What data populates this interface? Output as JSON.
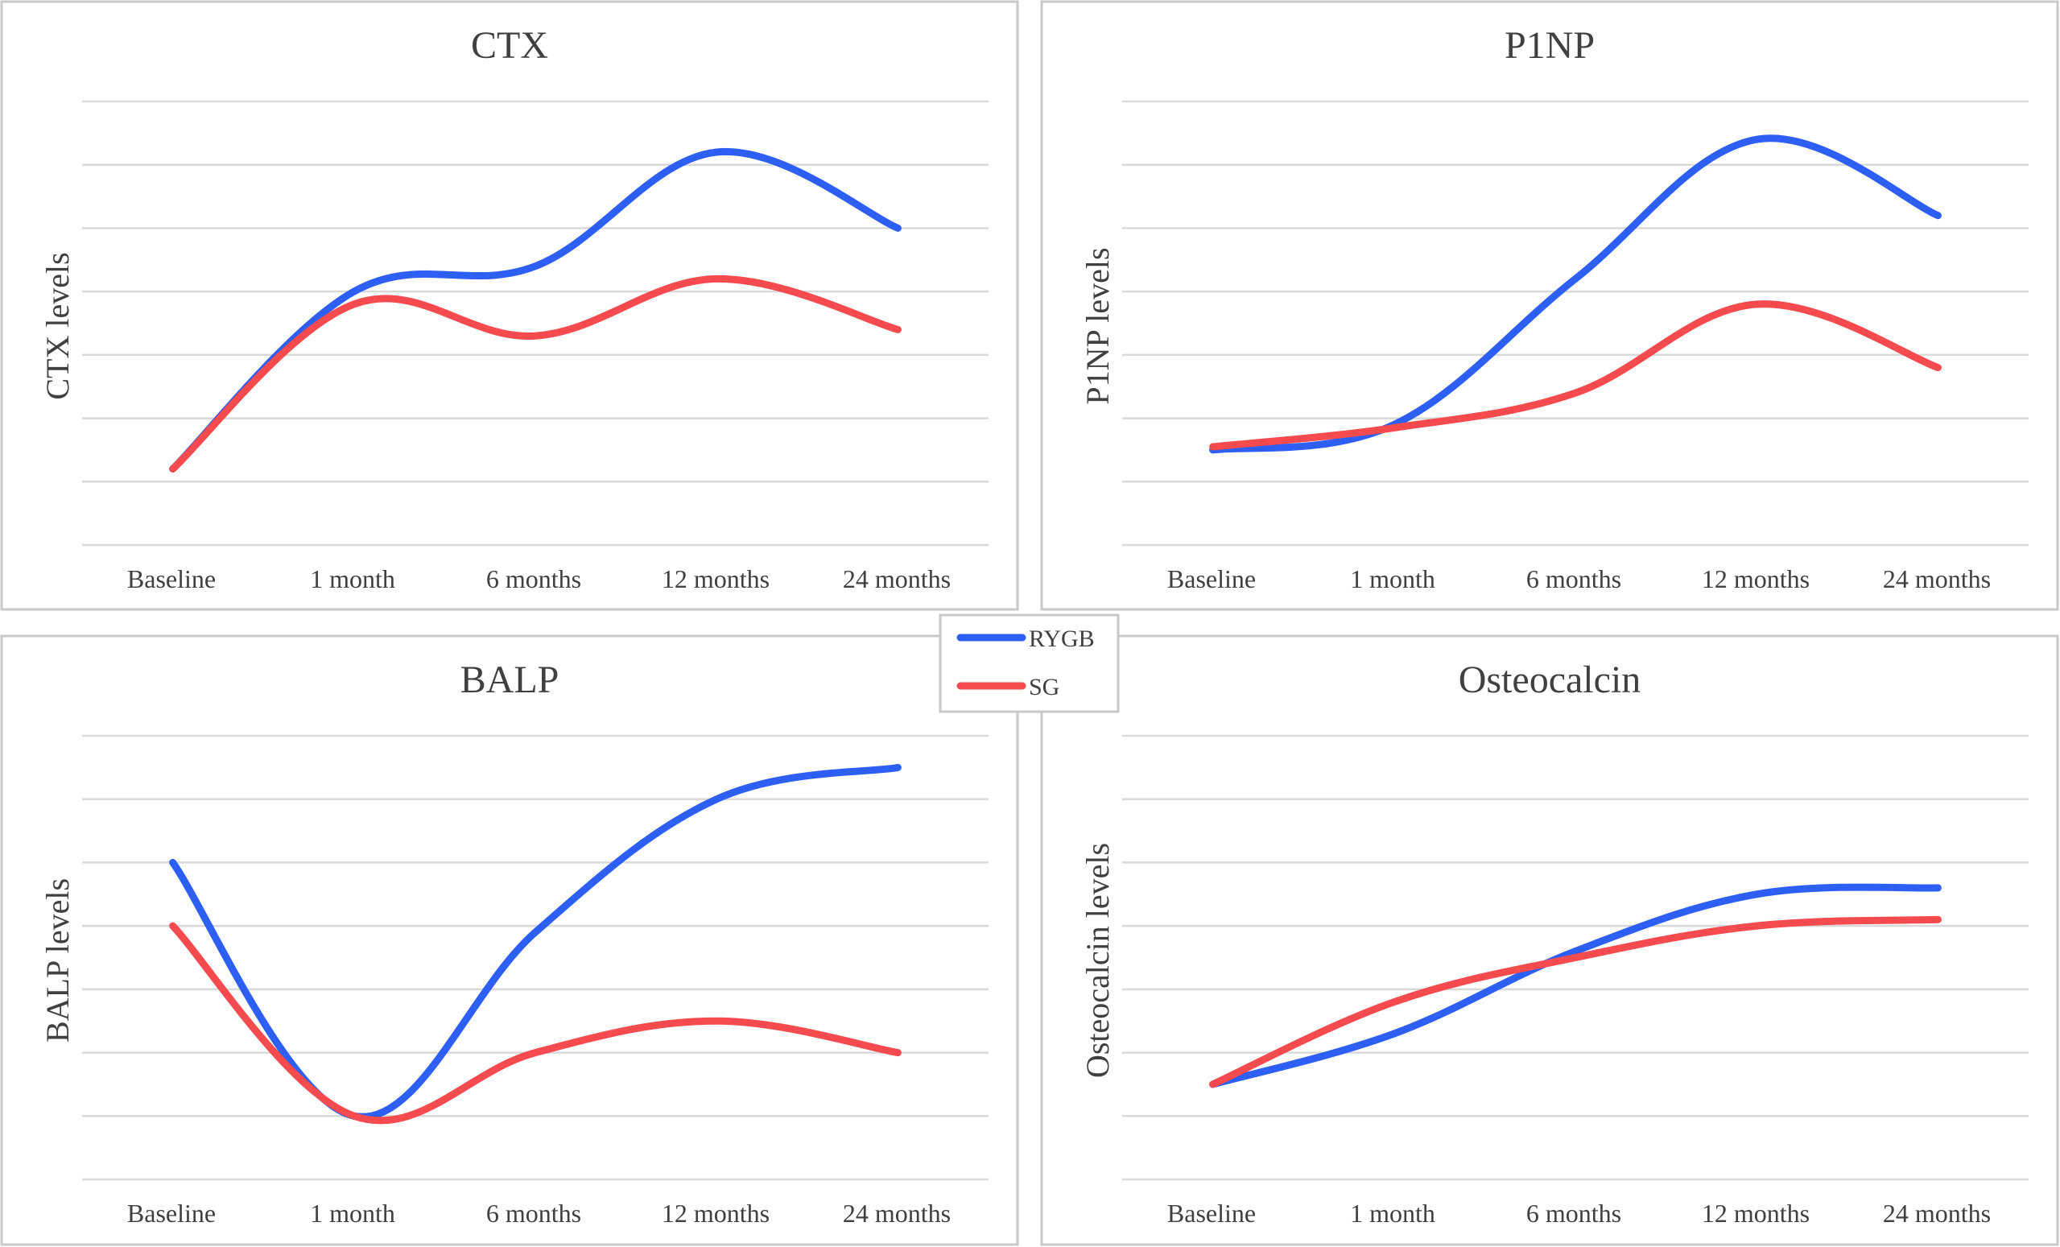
{
  "chart_data": [
    {
      "type": "line",
      "title": "CTX",
      "ylabel": "CTX levels",
      "xlabel": "",
      "categories": [
        "Baseline",
        "1 month",
        "6 months",
        "12 months",
        "24 months"
      ],
      "ylim": [
        0,
        7
      ],
      "series": [
        {
          "name": "RYGB",
          "values": [
            1.2,
            4.0,
            4.4,
            6.2,
            5.0
          ]
        },
        {
          "name": "SG",
          "values": [
            1.2,
            3.8,
            3.3,
            4.2,
            3.4
          ]
        }
      ]
    },
    {
      "type": "line",
      "title": "P1NP",
      "ylabel": "P1NP levels",
      "xlabel": "",
      "categories": [
        "Baseline",
        "1 month",
        "6 months",
        "12 months",
        "24 months"
      ],
      "ylim": [
        0,
        7
      ],
      "series": [
        {
          "name": "RYGB",
          "values": [
            1.5,
            1.9,
            4.2,
            6.4,
            5.2
          ]
        },
        {
          "name": "SG",
          "values": [
            1.55,
            1.85,
            2.4,
            3.8,
            2.8
          ]
        }
      ]
    },
    {
      "type": "line",
      "title": "BALP",
      "ylabel": "BALP levels",
      "xlabel": "",
      "categories": [
        "Baseline",
        "1 month",
        "6 months",
        "12 months",
        "24 months"
      ],
      "ylim": [
        0,
        7
      ],
      "series": [
        {
          "name": "RYGB",
          "values": [
            5.0,
            1.0,
            3.9,
            6.0,
            6.5
          ]
        },
        {
          "name": "SG",
          "values": [
            4.0,
            1.0,
            2.0,
            2.5,
            2.0
          ]
        }
      ]
    },
    {
      "type": "line",
      "title": "Osteocalcin",
      "ylabel": "Osteocalcin levels",
      "xlabel": "",
      "categories": [
        "Baseline",
        "1 month",
        "6 months",
        "12 months",
        "24 months"
      ],
      "ylim": [
        0,
        7
      ],
      "series": [
        {
          "name": "RYGB",
          "values": [
            1.5,
            2.3,
            3.6,
            4.5,
            4.6
          ]
        },
        {
          "name": "SG",
          "values": [
            1.5,
            2.8,
            3.5,
            4.0,
            4.1
          ]
        }
      ]
    }
  ],
  "legend": {
    "position": "center",
    "items": [
      {
        "label": "RYGB",
        "color": "#2e5ff5"
      },
      {
        "label": "SG",
        "color": "#f54a4e"
      }
    ]
  },
  "colors": {
    "RYGB": "#2e5ff5",
    "SG": "#f54a4e",
    "grid": "#d9d9d9",
    "text": "#404040"
  }
}
